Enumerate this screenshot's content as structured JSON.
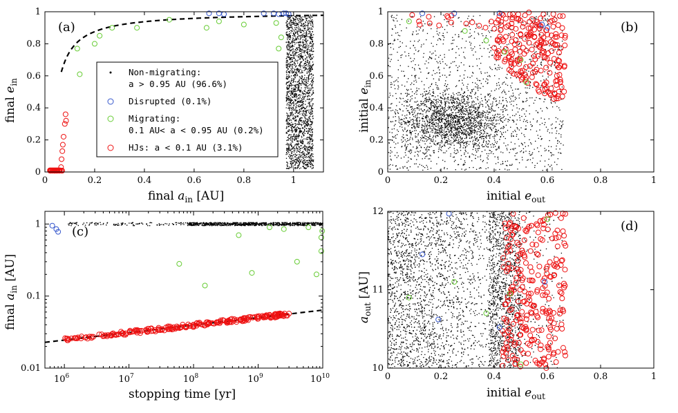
{
  "chart_data": [
    {
      "id": "a",
      "panel_label": "(a)",
      "type": "scatter",
      "xlabel": "final a_in [AU]",
      "ylabel": "final e_in",
      "xlim": [
        0,
        1.12
      ],
      "ylim": [
        0,
        1
      ],
      "xticks": [
        "0",
        "0.2",
        "0.4",
        "0.6",
        "0.8",
        "1"
      ],
      "xtick_values": [
        0,
        0.2,
        0.4,
        0.6,
        0.8,
        1
      ],
      "yticks": [
        "0",
        "0.2",
        "0.4",
        "0.6",
        "0.8",
        "1"
      ],
      "ytick_values": [
        0,
        0.2,
        0.4,
        0.6,
        0.8,
        1
      ],
      "legend": [
        {
          "marker": "dot",
          "color": "#000000",
          "line1": "Non-migrating:",
          "line2": "a > 0.95 AU (96.6%)"
        },
        {
          "marker": "circle",
          "color": "#3355cc",
          "line1": "Disrupted (0.1%)",
          "line2": ""
        },
        {
          "marker": "circle",
          "color": "#66cc33",
          "line1": "Migrating:",
          "line2": "0.1 AU< a < 0.95 AU (0.2%)"
        },
        {
          "marker": "circle",
          "color": "#ee1111",
          "line1": "HJs: a < 0.1 AU (3.1%)",
          "line2": ""
        }
      ],
      "series": [
        {
          "name": "Disrupted",
          "color": "#3355cc",
          "points": [
            [
              0.66,
              0.99
            ],
            [
              0.7,
              0.99
            ],
            [
              0.72,
              0.985
            ],
            [
              0.88,
              0.99
            ],
            [
              0.92,
              0.99
            ],
            [
              0.94,
              0.985
            ],
            [
              0.96,
              0.99
            ],
            [
              0.97,
              0.99
            ],
            [
              0.98,
              0.985
            ]
          ]
        },
        {
          "name": "Migrating",
          "color": "#66cc33",
          "points": [
            [
              0.13,
              0.77
            ],
            [
              0.14,
              0.61
            ],
            [
              0.2,
              0.8
            ],
            [
              0.22,
              0.85
            ],
            [
              0.27,
              0.9
            ],
            [
              0.37,
              0.9
            ],
            [
              0.5,
              0.95
            ],
            [
              0.65,
              0.9
            ],
            [
              0.7,
              0.94
            ],
            [
              0.8,
              0.92
            ],
            [
              0.93,
              0.93
            ],
            [
              0.94,
              0.77
            ],
            [
              0.95,
              0.84
            ]
          ]
        },
        {
          "name": "HJs",
          "color": "#ee1111",
          "points": [
            [
              0.02,
              0.01
            ],
            [
              0.025,
              0.01
            ],
            [
              0.03,
              0.01
            ],
            [
              0.035,
              0.01
            ],
            [
              0.04,
              0.01
            ],
            [
              0.045,
              0.01
            ],
            [
              0.05,
              0.01
            ],
            [
              0.055,
              0.01
            ],
            [
              0.06,
              0.01
            ],
            [
              0.065,
              0.03
            ],
            [
              0.067,
              0.08
            ],
            [
              0.07,
              0.13
            ],
            [
              0.072,
              0.17
            ],
            [
              0.075,
              0.22
            ],
            [
              0.08,
              0.3
            ],
            [
              0.083,
              0.36
            ],
            [
              0.085,
              0.32
            ]
          ]
        }
      ],
      "fit_curve": {
        "style": "dashed"
      }
    },
    {
      "id": "b",
      "panel_label": "(b)",
      "type": "scatter",
      "xlabel": "initial e_out",
      "ylabel": "initial e_in",
      "xlim": [
        0,
        1
      ],
      "ylim": [
        0,
        1
      ],
      "xticks": [
        "0",
        "0.2",
        "0.4",
        "0.6",
        "0.8",
        "1"
      ],
      "xtick_values": [
        0,
        0.2,
        0.4,
        0.6,
        0.8,
        1
      ],
      "yticks": [
        "0",
        "0.2",
        "0.4",
        "0.6",
        "0.8",
        "1"
      ],
      "ytick_values": [
        0,
        0.2,
        0.4,
        0.6,
        0.8,
        1
      ]
    },
    {
      "id": "c",
      "panel_label": "(c)",
      "type": "scatter",
      "xlabel": "stopping time [yr]",
      "ylabel": "final a_in [AU]",
      "xscale": "log",
      "yscale": "log",
      "xlim": [
        500000,
        10000000000
      ],
      "ylim": [
        0.01,
        1.5
      ],
      "xticks": [
        {
          "base": "10",
          "exp": "6"
        },
        {
          "base": "10",
          "exp": "7"
        },
        {
          "base": "10",
          "exp": "8"
        },
        {
          "base": "10",
          "exp": "9"
        },
        {
          "base": "10",
          "exp": "10"
        }
      ],
      "xtick_values": [
        1000000,
        10000000,
        100000000,
        1000000000,
        10000000000
      ],
      "yticks": [
        "0.01",
        "0.1",
        "1"
      ],
      "ytick_values": [
        0.01,
        0.1,
        1
      ],
      "series": [
        {
          "name": "Disrupted",
          "color": "#3355cc",
          "points": [
            [
              650000,
              0.95
            ],
            [
              750000,
              0.85
            ],
            [
              800000,
              0.78
            ]
          ]
        },
        {
          "name": "Migrating",
          "color": "#66cc33",
          "points": [
            [
              60000000,
              0.28
            ],
            [
              150000000,
              0.14
            ],
            [
              500000000,
              0.7
            ],
            [
              800000000,
              0.21
            ],
            [
              1500000000,
              0.9
            ],
            [
              2500000000,
              0.85
            ],
            [
              4000000000,
              0.3
            ],
            [
              6000000000,
              0.9
            ],
            [
              8000000000,
              0.2
            ],
            [
              9500000000,
              0.42
            ],
            [
              9500000000,
              0.65
            ],
            [
              9800000000,
              0.8
            ]
          ]
        }
      ],
      "fit_curve": {
        "style": "dashed",
        "a_at_1e6": 0.0245,
        "slope": 0.104
      }
    },
    {
      "id": "d",
      "panel_label": "(d)",
      "type": "scatter",
      "xlabel": "initial e_out",
      "ylabel": "a_out [AU]",
      "xlim": [
        0,
        1
      ],
      "ylim": [
        10,
        12
      ],
      "xticks": [
        "0",
        "0.2",
        "0.4",
        "0.6",
        "0.8",
        "1"
      ],
      "xtick_values": [
        0,
        0.2,
        0.4,
        0.6,
        0.8,
        1
      ],
      "yticks": [
        "10",
        "11",
        "12"
      ],
      "ytick_values": [
        10,
        11,
        12
      ]
    }
  ]
}
